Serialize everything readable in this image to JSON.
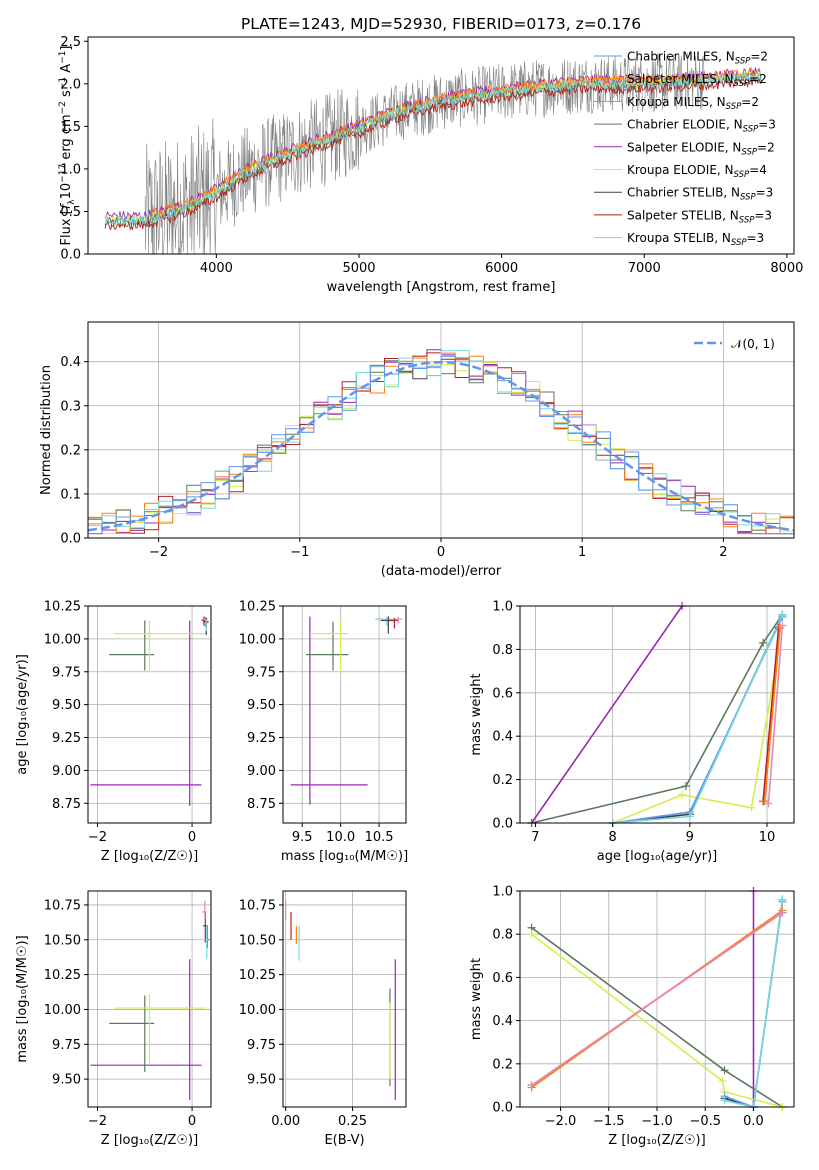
{
  "figure_title": "PLATE=1243, MJD=52930, FIBERID=0173, z=0.176",
  "colors": {
    "chabrier_miles": "#6495ed",
    "salpeter_miles": "#ff8c00",
    "kroupa_miles": "#ff7f0e",
    "chabrier_elodie": "#5b7a5b",
    "salpeter_elodie": "#9b26b6",
    "kroupa_elodie": "#d4ef4d",
    "chabrier_stelib": "#404040",
    "salpeter_stelib": "#b22222",
    "kroupa_stelib": "#78d8e0",
    "data": "#808080",
    "normal": "#6495ed",
    "pinkish": "#e38ab5"
  },
  "chart_data": [
    {
      "id": "spectrum",
      "type": "line",
      "title": "PLATE=1243, MJD=52930, FIBERID=0173, z=0.176",
      "xlabel": "wavelength [Angstrom, rest frame]",
      "ylabel_parts": {
        "pre": "Flux [",
        "f": "f",
        "sub": "λ",
        "mid": "10",
        "exp1": "−17",
        "erg": " erg cm",
        "exp2": "−2",
        "s": " s",
        "exp3": "−1",
        "A": " A",
        "exp4": "−1",
        "post": "]"
      },
      "xlim": [
        3100,
        8050
      ],
      "ylim": [
        0,
        2.55
      ],
      "xticks": [
        4000,
        5000,
        6000,
        7000,
        8000
      ],
      "yticks": [
        0.0,
        0.5,
        1.0,
        1.5,
        2.0,
        2.5
      ],
      "xtick_labels": [
        "4000",
        "5000",
        "6000",
        7000,
        "8000"
      ],
      "ytick_labels": [
        "0.0",
        "0.5",
        "1.0",
        "1.5",
        "2.0",
        "2.5"
      ],
      "legend_position": "right",
      "legend": [
        {
          "pre": "Chabrier MILES, N",
          "sub": "SSP",
          "post": "=2",
          "color": "#6495ed"
        },
        {
          "pre": "Salpeter MILES, N",
          "sub": "SSP",
          "post": "=2",
          "color": "#ff8c00"
        },
        {
          "pre": "Kroupa MILES, N",
          "sub": "SSP",
          "post": "=2",
          "color": "#ff7f0e"
        },
        {
          "pre": "Chabrier ELODIE, N",
          "sub": "SSP",
          "post": "=3",
          "color": "#5b7a5b"
        },
        {
          "pre": "Salpeter ELODIE, N",
          "sub": "SSP",
          "post": "=2",
          "color": "#9b26b6"
        },
        {
          "pre": "Kroupa ELODIE, N",
          "sub": "SSP",
          "post": "=4",
          "color": "#d4ef4d"
        },
        {
          "pre": "Chabrier STELIB, N",
          "sub": "SSP",
          "post": "=3",
          "color": "#404040"
        },
        {
          "pre": "Salpeter STELIB, N",
          "sub": "SSP",
          "post": "=3",
          "color": "#b22222"
        },
        {
          "pre": "Kroupa STELIB, N",
          "sub": "SSP",
          "post": "=3",
          "color": "#78d8e0"
        }
      ],
      "trend": {
        "x": [
          3220,
          3500,
          3800,
          4000,
          4200,
          4400,
          4700,
          5000,
          5300,
          5600,
          6000,
          6300,
          6600,
          6900,
          7200,
          7500,
          7800
        ],
        "y": [
          0.4,
          0.4,
          0.55,
          0.72,
          0.95,
          1.1,
          1.3,
          1.48,
          1.68,
          1.8,
          1.9,
          1.96,
          2.0,
          2.0,
          2.02,
          2.05,
          2.1
        ]
      },
      "data_range": [
        3500,
        7420
      ]
    },
    {
      "id": "residuals",
      "type": "histogram",
      "xlabel": "(data-model)/error",
      "ylabel": "Normed distribution",
      "xlim": [
        -2.5,
        2.5
      ],
      "ylim": [
        0,
        0.49
      ],
      "xticks": [
        -2,
        -1,
        0,
        1,
        2
      ],
      "yticks": [
        0.0,
        0.1,
        0.2,
        0.3,
        0.4
      ],
      "xtick_labels": [
        "−2",
        "−1",
        "0",
        "1",
        "2"
      ],
      "ytick_labels": [
        "0.0",
        "0.1",
        "0.2",
        "0.3",
        "0.4"
      ],
      "legend_label": "𝒩(0, 1)",
      "legend_position": "top-right",
      "bin_width": 0.1,
      "grid": true
    },
    {
      "id": "age-vs-Z",
      "type": "errorbar",
      "xlabel": "Z [log₁₀(Z/Z☉)]",
      "ylabel": "age  [log₁₀(age/yr)]",
      "xlim": [
        -2.2,
        0.4
      ],
      "ylim": [
        8.6,
        10.25
      ],
      "xticks": [
        -2,
        0
      ],
      "yticks": [
        8.75,
        9.0,
        9.25,
        9.5,
        9.75,
        10.0,
        10.25
      ],
      "xtick_labels": [
        "−2",
        "0"
      ],
      "ytick_labels": [
        "8.75",
        "9.00",
        "9.25",
        "9.50",
        "9.75",
        "10.00",
        "10.25"
      ],
      "points": [
        {
          "x": -0.05,
          "xerr": [
            2.1,
            0.25
          ],
          "y": 8.89,
          "yerr": [
            0.16,
            1.25
          ],
          "color": "#9b26b6"
        },
        {
          "x": -1.0,
          "xerr": [
            0.75,
            0.2
          ],
          "y": 9.88,
          "yerr": [
            0.12,
            0.26
          ],
          "color": "#5b7a5b"
        },
        {
          "x": -0.9,
          "xerr": [
            0.75,
            1.2
          ],
          "y": 10.04,
          "yerr": [
            0.3,
            0.1
          ],
          "color": "#d4ef4d"
        },
        {
          "x": 0.25,
          "xerr": [
            0.05,
            0.05
          ],
          "y": 10.14,
          "yerr": [
            0.04,
            0.03
          ],
          "color": "#b22222"
        },
        {
          "x": 0.28,
          "xerr": [
            0.06,
            0.05
          ],
          "y": 10.15,
          "yerr": [
            0.06,
            0.02
          ],
          "color": "#e38ab5"
        },
        {
          "x": 0.3,
          "xerr": [
            0.04,
            0.05
          ],
          "y": 10.13,
          "yerr": [
            0.1,
            0.03
          ],
          "color": "#404040"
        },
        {
          "x": 0.3,
          "xerr": [
            0.03,
            0.04
          ],
          "y": 10.12,
          "yerr": [
            0.06,
            0.03
          ],
          "color": "#78d8e0"
        }
      ]
    },
    {
      "id": "age-vs-mass",
      "type": "errorbar",
      "xlabel": "mass [log₁₀(M/M☉)]",
      "ylabel": "",
      "xlim": [
        9.25,
        10.85
      ],
      "ylim": [
        8.6,
        10.25
      ],
      "xticks": [
        9.5,
        10.0,
        10.5
      ],
      "yticks": [
        8.75,
        9.0,
        9.25,
        9.5,
        9.75,
        10.0,
        10.25
      ],
      "xtick_labels": [
        "9.5",
        "10.0",
        "10.5"
      ],
      "ytick_labels": [
        "8.75",
        "9.00",
        "9.25",
        "9.50",
        "9.75",
        "10.00",
        "10.25"
      ],
      "points": [
        {
          "x": 9.6,
          "xerr": [
            0.25,
            0.75
          ],
          "y": 8.89,
          "yerr": [
            0.15,
            1.28
          ],
          "color": "#9b26b6"
        },
        {
          "x": 9.9,
          "xerr": [
            0.35,
            0.2
          ],
          "y": 9.88,
          "yerr": [
            0.12,
            0.25
          ],
          "color": "#5b7a5b"
        },
        {
          "x": 10.0,
          "xerr": [
            0.4,
            0.1
          ],
          "y": 10.04,
          "yerr": [
            0.3,
            0.1
          ],
          "color": "#d4ef4d"
        },
        {
          "x": 10.6,
          "xerr": [
            0.15,
            0.1
          ],
          "y": 10.15,
          "yerr": [
            0.05,
            0.02
          ],
          "color": "#78d8e0"
        },
        {
          "x": 10.62,
          "xerr": [
            0.1,
            0.08
          ],
          "y": 10.14,
          "yerr": [
            0.1,
            0.03
          ],
          "color": "#404040"
        },
        {
          "x": 10.7,
          "xerr": [
            0.07,
            0.05
          ],
          "y": 10.14,
          "yerr": [
            0.06,
            0.02
          ],
          "color": "#b22222"
        },
        {
          "x": 10.75,
          "xerr": [
            0.05,
            0.05
          ],
          "y": 10.15,
          "yerr": [
            0.03,
            0.02
          ],
          "color": "#e38ab5"
        }
      ]
    },
    {
      "id": "weight-vs-age",
      "type": "line",
      "xlabel": "age  [log₁₀(age/yr)]",
      "ylabel": "mass weight",
      "xlim": [
        6.8,
        10.35
      ],
      "ylim": [
        0,
        1.0
      ],
      "xticks": [
        7,
        8,
        9,
        10
      ],
      "yticks": [
        0.0,
        0.2,
        0.4,
        0.6,
        0.8,
        1.0
      ],
      "xtick_labels": [
        "7",
        "8",
        "9",
        "10"
      ],
      "ytick_labels": [
        "0.0",
        "0.2",
        "0.4",
        "0.6",
        "0.8",
        "1.0"
      ],
      "series": [
        {
          "color": "#9b26b6",
          "x": [
            6.95,
            8.9
          ],
          "y": [
            0.0,
            1.0
          ]
        },
        {
          "color": "#5b7a5b",
          "x": [
            6.95,
            8.95,
            9.95,
            10.2
          ],
          "y": [
            0.0,
            0.17,
            0.83,
            0.96
          ]
        },
        {
          "color": "#d4ef4d",
          "x": [
            8.0,
            8.9,
            9.8,
            10.15
          ],
          "y": [
            0.0,
            0.13,
            0.07,
            0.8
          ]
        },
        {
          "color": "#404040",
          "x": [
            8.0,
            9.0,
            10.2
          ],
          "y": [
            0.0,
            0.04,
            0.96
          ]
        },
        {
          "color": "#6495ed",
          "x": [
            8.0,
            9.0,
            10.2
          ],
          "y": [
            0.0,
            0.05,
            0.95
          ]
        },
        {
          "color": "#78d8e0",
          "x": [
            8.0,
            9.0,
            10.2
          ],
          "y": [
            0.0,
            0.03,
            0.96
          ]
        },
        {
          "color": "#b22222",
          "x": [
            9.95,
            10.15
          ],
          "y": [
            0.1,
            0.9
          ]
        },
        {
          "color": "#ff7f0e",
          "x": [
            9.97,
            10.17
          ],
          "y": [
            0.1,
            0.9
          ]
        },
        {
          "color": "#e38ab5",
          "x": [
            10.02,
            10.2
          ],
          "y": [
            0.09,
            0.91
          ]
        }
      ]
    },
    {
      "id": "mass-vs-Z",
      "type": "errorbar",
      "xlabel": "Z [log₁₀(Z/Z☉)]",
      "ylabel": "mass [log₁₀(M/M☉)]",
      "xlim": [
        -2.2,
        0.4
      ],
      "ylim": [
        9.3,
        10.85
      ],
      "xticks": [
        -2,
        0
      ],
      "yticks": [
        9.5,
        9.75,
        10.0,
        10.25,
        10.5,
        10.75
      ],
      "xtick_labels": [
        "−2",
        "0"
      ],
      "ytick_labels": [
        "9.50",
        "9.75",
        "10.00",
        "10.25",
        "10.50",
        "10.75"
      ],
      "points": [
        {
          "x": -0.05,
          "xerr": [
            2.1,
            0.25
          ],
          "y": 9.6,
          "yerr": [
            0.25,
            0.76
          ],
          "color": "#9b26b6"
        },
        {
          "x": -1.0,
          "xerr": [
            0.75,
            0.2
          ],
          "y": 9.9,
          "yerr": [
            0.35,
            0.2
          ],
          "color": "#5b7a5b"
        },
        {
          "x": -0.9,
          "xerr": [
            0.75,
            1.2
          ],
          "y": 10.01,
          "yerr": [
            0.4,
            0.1
          ],
          "color": "#d4ef4d"
        },
        {
          "x": 0.28,
          "xerr": [
            0.05,
            0.05
          ],
          "y": 10.6,
          "yerr": [
            0.12,
            0.1
          ],
          "color": "#b22222"
        },
        {
          "x": 0.27,
          "xerr": [
            0.06,
            0.04
          ],
          "y": 10.7,
          "yerr": [
            0.05,
            0.08
          ],
          "color": "#e38ab5"
        },
        {
          "x": 0.32,
          "xerr": [
            0.05,
            0.04
          ],
          "y": 10.5,
          "yerr": [
            0.06,
            0.1
          ],
          "color": "#404040"
        },
        {
          "x": 0.31,
          "xerr": [
            0.03,
            0.04
          ],
          "y": 10.5,
          "yerr": [
            0.14,
            0.1
          ],
          "color": "#78d8e0"
        }
      ]
    },
    {
      "id": "mass-vs-ebv",
      "type": "errorbar",
      "xlabel": "E(B-V)",
      "ylabel": "",
      "xlim": [
        -0.01,
        0.45
      ],
      "ylim": [
        9.3,
        10.85
      ],
      "xticks": [
        0.0,
        0.25
      ],
      "yticks": [
        9.5,
        9.75,
        10.0,
        10.25,
        10.5,
        10.75
      ],
      "xtick_labels": [
        "0.00",
        "0.25"
      ],
      "ytick_labels": [
        "9.50",
        "9.75",
        "10.00",
        "10.25",
        "10.50",
        "10.75"
      ],
      "points": [
        {
          "x": 0.41,
          "y": 9.6,
          "yerr": [
            0.25,
            0.76
          ],
          "color": "#9b26b6"
        },
        {
          "x": 0.39,
          "y": 9.9,
          "yerr": [
            0.45,
            0.25
          ],
          "color": "#5b7a5b"
        },
        {
          "x": 0.39,
          "y": 9.85,
          "yerr": [
            0.35,
            0.2
          ],
          "color": "#d4ef4d"
        },
        {
          "x": 0.0,
          "y": 10.72,
          "yerr": [
            0.08,
            0.06
          ],
          "color": "#e38ab5"
        },
        {
          "x": 0.02,
          "y": 10.6,
          "yerr": [
            0.1,
            0.1
          ],
          "color": "#b22222"
        },
        {
          "x": 0.04,
          "y": 10.55,
          "yerr": [
            0.08,
            0.05
          ],
          "color": "#ff7f0e"
        },
        {
          "x": 0.05,
          "y": 10.45,
          "yerr": [
            0.1,
            0.15
          ],
          "color": "#78d8e0"
        }
      ]
    },
    {
      "id": "weight-vs-Z",
      "type": "line",
      "xlabel": "Z [log₁₀(Z/Z☉)]",
      "ylabel": "mass weight",
      "xlim": [
        -2.42,
        0.42
      ],
      "ylim": [
        0,
        1.0
      ],
      "xticks": [
        -2.0,
        -1.5,
        -1.0,
        -0.5,
        0.0
      ],
      "yticks": [
        0.0,
        0.2,
        0.4,
        0.6,
        0.8,
        1.0
      ],
      "xtick_labels": [
        "−2.0",
        "−1.5",
        "−1.0",
        "−0.5",
        "0.0"
      ],
      "ytick_labels": [
        "0.0",
        "0.2",
        "0.4",
        "0.6",
        "0.8",
        "1.0"
      ],
      "series": [
        {
          "color": "#9b26b6",
          "x": [
            0.0,
            0.0
          ],
          "y": [
            1.0,
            0.0
          ]
        },
        {
          "color": "#5b7a5b",
          "x": [
            -2.3,
            -0.3,
            0.3
          ],
          "y": [
            0.83,
            0.17,
            0.0
          ]
        },
        {
          "color": "#d4ef4d",
          "x": [
            -2.3,
            -0.32,
            -0.3,
            0.3
          ],
          "y": [
            0.8,
            0.12,
            0.07,
            0.0
          ]
        },
        {
          "color": "#404040",
          "x": [
            -0.3,
            0.0,
            0.3
          ],
          "y": [
            0.04,
            0.0,
            0.96
          ]
        },
        {
          "color": "#6495ed",
          "x": [
            -0.3,
            0.0,
            0.3
          ],
          "y": [
            0.05,
            0.0,
            0.95
          ]
        },
        {
          "color": "#78d8e0",
          "x": [
            -0.3,
            0.0,
            0.3
          ],
          "y": [
            0.03,
            0.0,
            0.96
          ]
        },
        {
          "color": "#b22222",
          "x": [
            -2.3,
            0.3
          ],
          "y": [
            0.1,
            0.9
          ]
        },
        {
          "color": "#ff7f0e",
          "x": [
            -2.3,
            0.3
          ],
          "y": [
            0.09,
            0.91
          ]
        },
        {
          "color": "#e38ab5",
          "x": [
            -2.3,
            0.3
          ],
          "y": [
            0.1,
            0.9
          ]
        }
      ]
    }
  ]
}
